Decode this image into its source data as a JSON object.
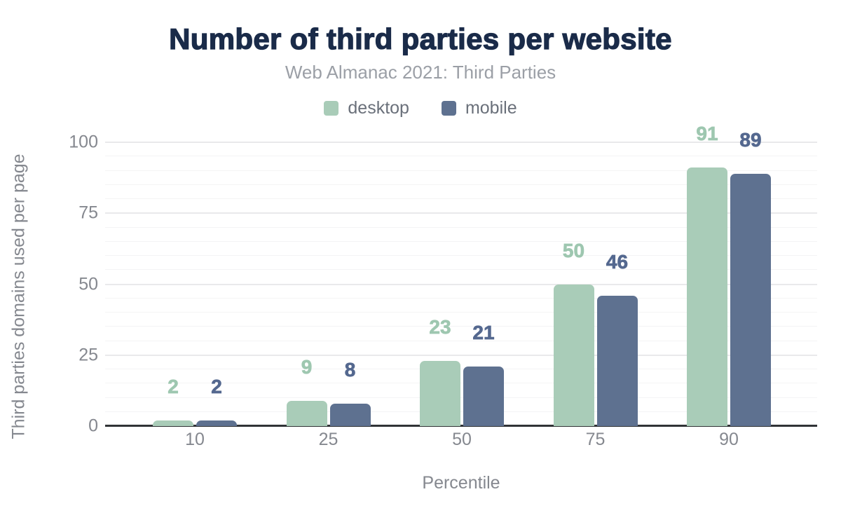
{
  "chart_data": {
    "type": "bar",
    "title": "Number of third parties per website",
    "subtitle": "Web Almanac 2021: Third Parties",
    "xlabel": "Percentile",
    "ylabel": "Third parties domains used per page",
    "categories": [
      "10",
      "25",
      "50",
      "75",
      "90"
    ],
    "series": [
      {
        "name": "desktop",
        "values": [
          2,
          9,
          23,
          50,
          91
        ],
        "color": "#a9ccb8",
        "label_color": "#9ec7b0"
      },
      {
        "name": "mobile",
        "values": [
          2,
          8,
          21,
          46,
          89
        ],
        "color": "#5e7190",
        "label_color": "#54688f"
      }
    ],
    "ylim": [
      0,
      100
    ],
    "yticks": [
      0,
      25,
      50,
      75,
      100
    ],
    "grid": {
      "show": true,
      "minor_step": 5,
      "major_step": 25
    },
    "legend_position": "top",
    "value_labels": true
  },
  "style": {
    "title_color": "#1a2b49",
    "subtitle_color": "#9b9fa6",
    "axis_text_color": "#85888f",
    "legend_text_color": "#6a707a",
    "baseline_color": "#303336",
    "background": "#ffffff"
  }
}
